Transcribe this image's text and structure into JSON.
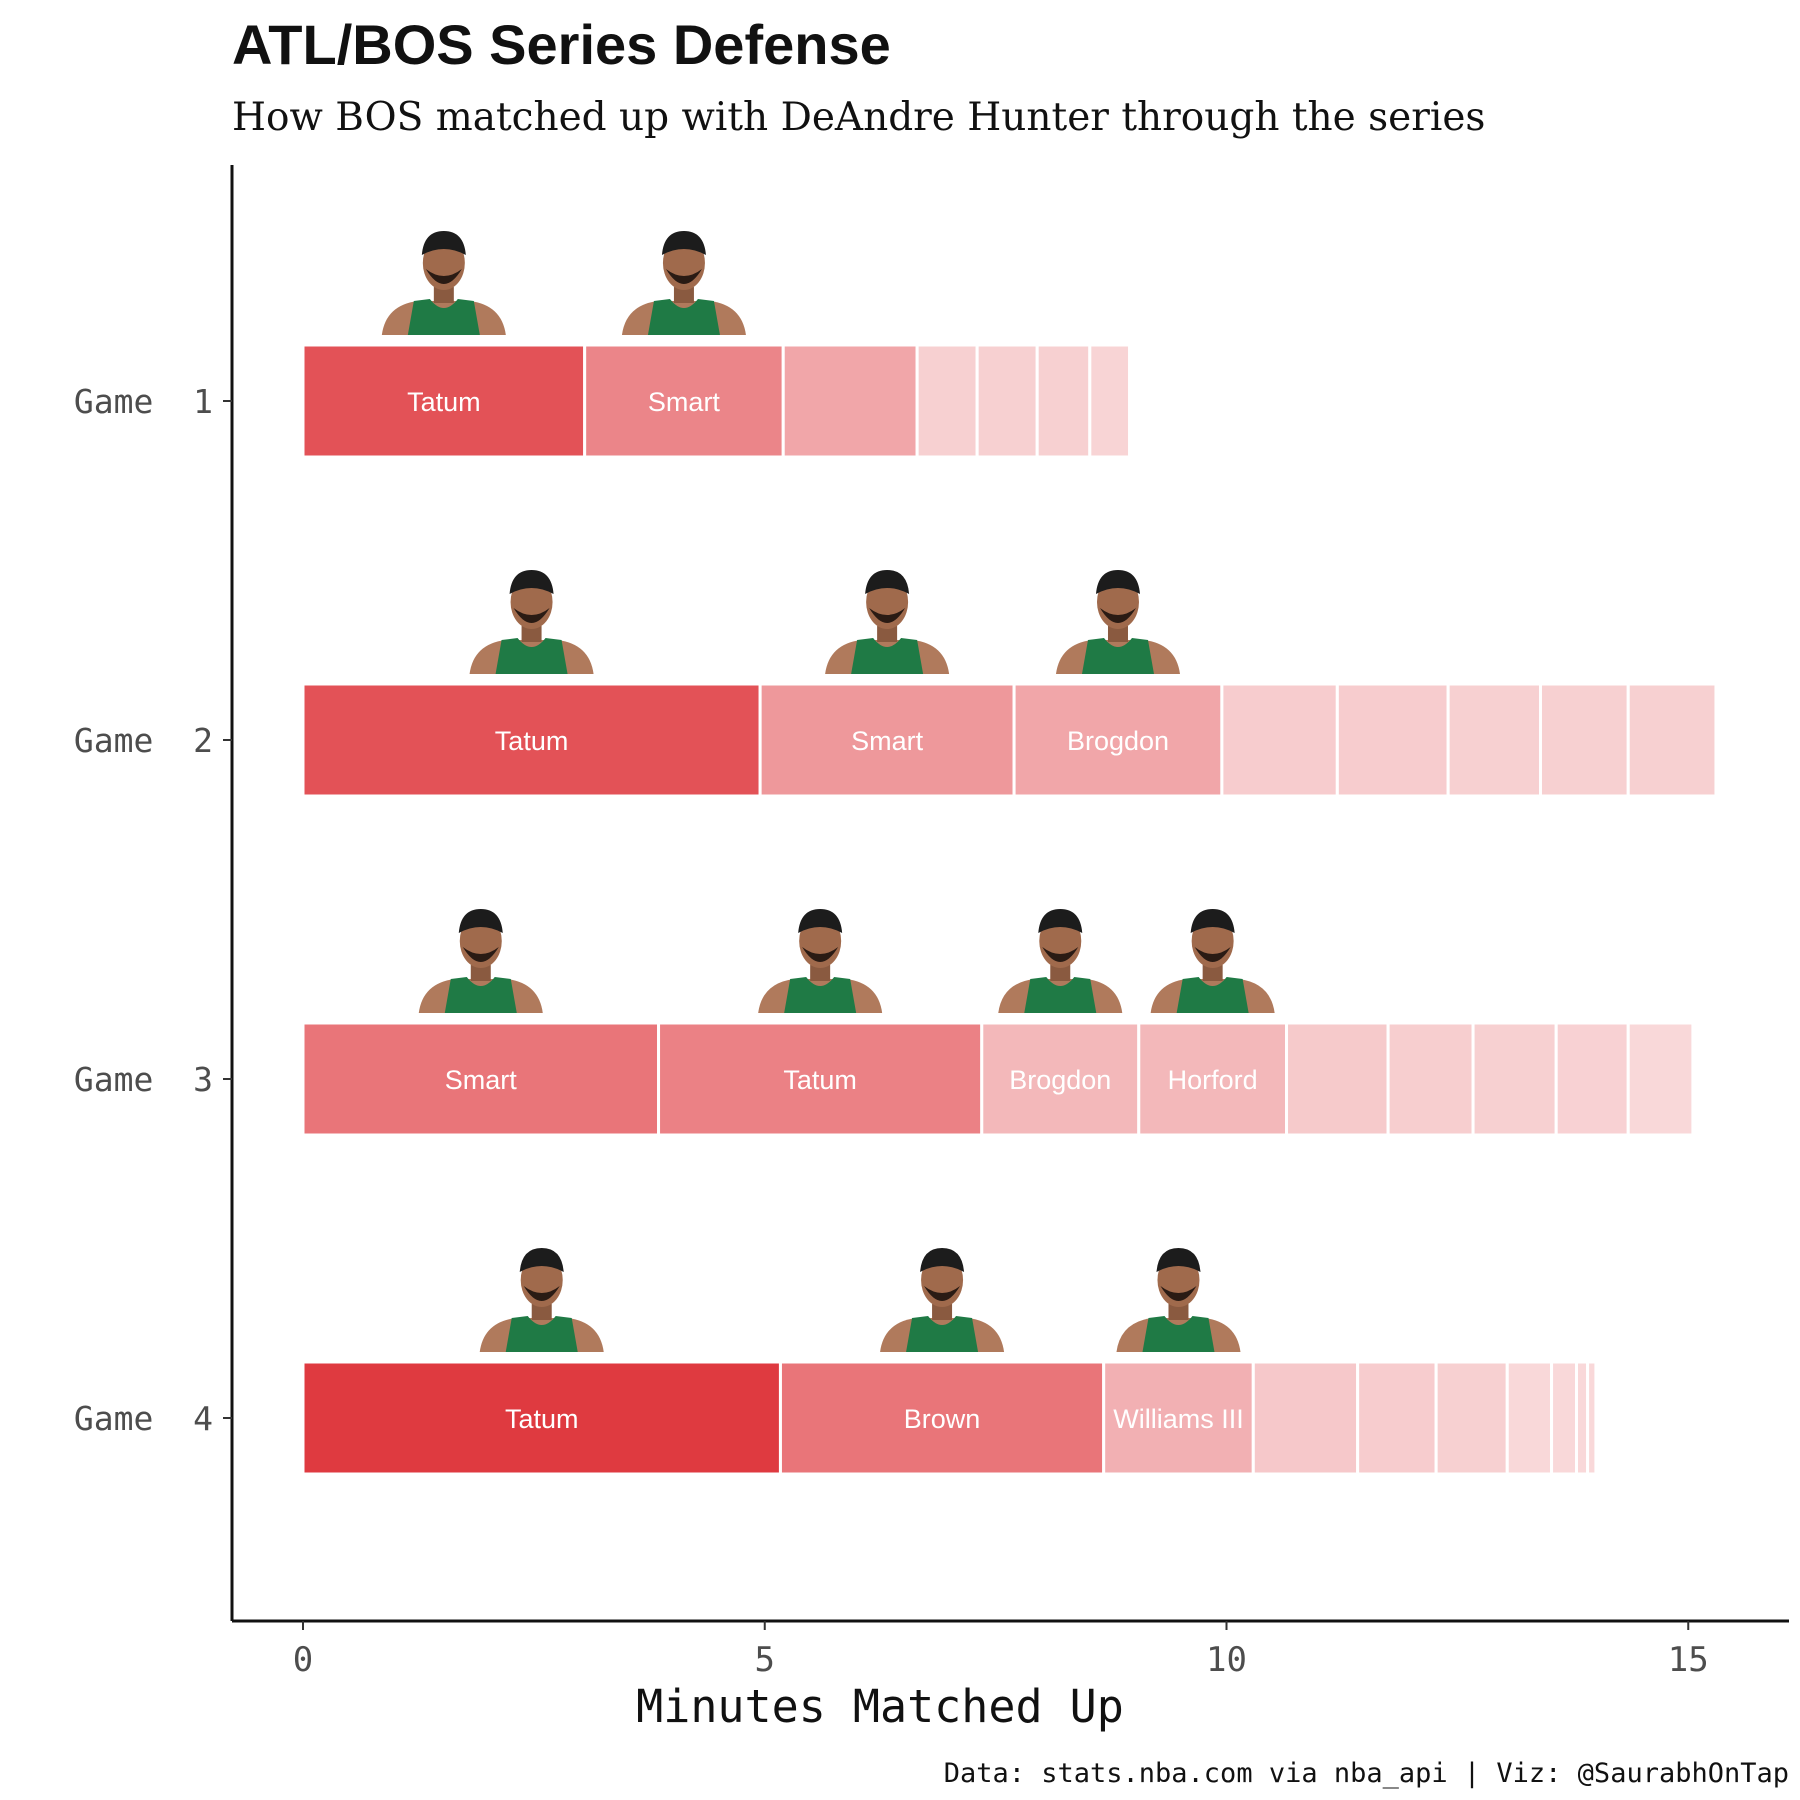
{
  "chart_data": {
    "type": "bar",
    "stacked": true,
    "orientation": "horizontal",
    "title": "ATL/BOS Series Defense",
    "subtitle": "How BOS matched up with DeAndre Hunter through the series",
    "xlabel": "Minutes Matched Up",
    "caption": "Data: stats.nba.com via nba_api | Viz: @SaurabhOnTap",
    "xlim": [
      -0.8,
      16.0
    ],
    "xticks": [
      0,
      5,
      10,
      15
    ],
    "grid": false,
    "bar_color": "#df3a40",
    "games": [
      {
        "label": "Game 1",
        "segments": [
          {
            "name": "Tatum",
            "minutes": 3.05,
            "alpha": 0.88,
            "headshot": true
          },
          {
            "name": "Smart",
            "minutes": 2.15,
            "alpha": 0.62,
            "headshot": true
          },
          {
            "name": "",
            "minutes": 1.45,
            "alpha": 0.45,
            "headshot": false
          },
          {
            "name": "",
            "minutes": 0.65,
            "alpha": 0.24,
            "headshot": false
          },
          {
            "name": "",
            "minutes": 0.65,
            "alpha": 0.24,
            "headshot": false
          },
          {
            "name": "",
            "minutes": 0.57,
            "alpha": 0.24,
            "headshot": false
          },
          {
            "name": "",
            "minutes": 0.43,
            "alpha": 0.22,
            "headshot": false
          }
        ]
      },
      {
        "label": "Game 2",
        "segments": [
          {
            "name": "Tatum",
            "minutes": 4.95,
            "alpha": 0.88,
            "headshot": true
          },
          {
            "name": "Smart",
            "minutes": 2.75,
            "alpha": 0.52,
            "headshot": true
          },
          {
            "name": "Brogdon",
            "minutes": 2.25,
            "alpha": 0.45,
            "headshot": true
          },
          {
            "name": "",
            "minutes": 1.25,
            "alpha": 0.26,
            "headshot": false
          },
          {
            "name": "",
            "minutes": 1.2,
            "alpha": 0.26,
            "headshot": false
          },
          {
            "name": "",
            "minutes": 1.0,
            "alpha": 0.24,
            "headshot": false
          },
          {
            "name": "",
            "minutes": 0.95,
            "alpha": 0.24,
            "headshot": false
          },
          {
            "name": "",
            "minutes": 0.95,
            "alpha": 0.24,
            "headshot": false
          }
        ]
      },
      {
        "label": "Game 3",
        "segments": [
          {
            "name": "Smart",
            "minutes": 3.85,
            "alpha": 0.7,
            "headshot": true
          },
          {
            "name": "Tatum",
            "minutes": 3.5,
            "alpha": 0.64,
            "headshot": true
          },
          {
            "name": "Brogdon",
            "minutes": 1.7,
            "alpha": 0.36,
            "headshot": true
          },
          {
            "name": "Horford",
            "minutes": 1.6,
            "alpha": 0.36,
            "headshot": true
          },
          {
            "name": "",
            "minutes": 1.1,
            "alpha": 0.27,
            "headshot": false
          },
          {
            "name": "",
            "minutes": 0.92,
            "alpha": 0.25,
            "headshot": false
          },
          {
            "name": "",
            "minutes": 0.9,
            "alpha": 0.24,
            "headshot": false
          },
          {
            "name": "",
            "minutes": 0.78,
            "alpha": 0.23,
            "headshot": false
          },
          {
            "name": "",
            "minutes": 0.7,
            "alpha": 0.2,
            "headshot": false
          }
        ]
      },
      {
        "label": "Game 4",
        "segments": [
          {
            "name": "Tatum",
            "minutes": 5.17,
            "alpha": 1.0,
            "headshot": true
          },
          {
            "name": "Brown",
            "minutes": 3.5,
            "alpha": 0.7,
            "headshot": true
          },
          {
            "name": "Williams III",
            "minutes": 1.62,
            "alpha": 0.4,
            "headshot": true
          },
          {
            "name": "",
            "minutes": 1.13,
            "alpha": 0.28,
            "headshot": false
          },
          {
            "name": "",
            "minutes": 0.85,
            "alpha": 0.26,
            "headshot": false
          },
          {
            "name": "",
            "minutes": 0.77,
            "alpha": 0.24,
            "headshot": false
          },
          {
            "name": "",
            "minutes": 0.48,
            "alpha": 0.2,
            "headshot": false
          },
          {
            "name": "",
            "minutes": 0.27,
            "alpha": 0.2,
            "headshot": false
          },
          {
            "name": "",
            "minutes": 0.12,
            "alpha": 0.2,
            "headshot": false
          },
          {
            "name": "",
            "minutes": 0.09,
            "alpha": 0.2,
            "headshot": false
          }
        ]
      }
    ]
  }
}
